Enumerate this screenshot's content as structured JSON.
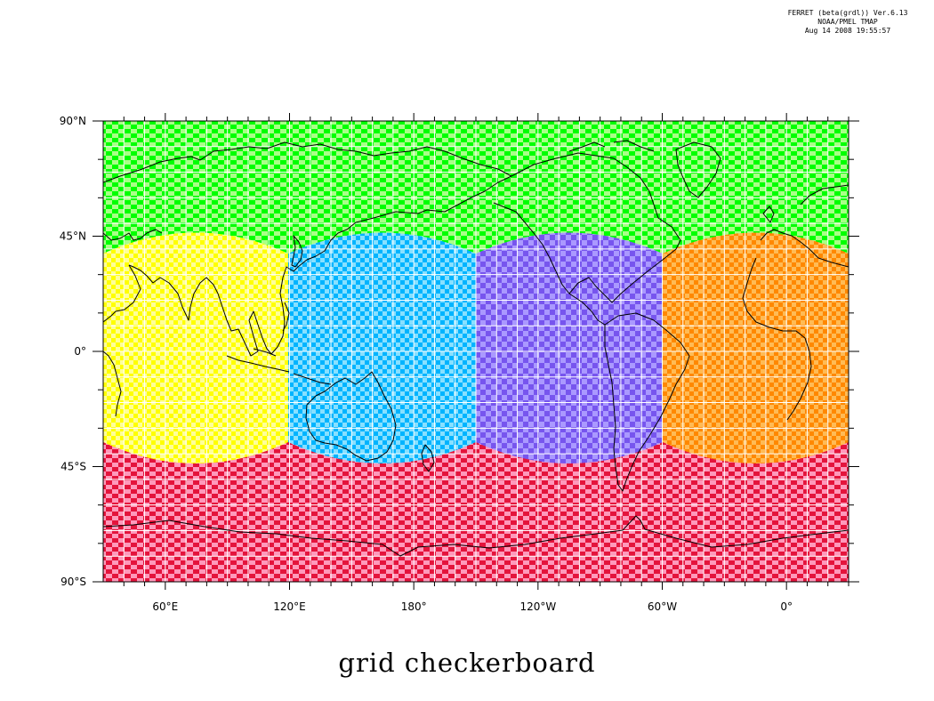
{
  "header": {
    "line1": "FERRET (beta(grdl)) Ver.6.13",
    "line2": "NOAA/PMEL TMAP",
    "line3": "Aug 14 2008 19:55:57"
  },
  "title": "grid checkerboard",
  "map": {
    "lat_labels": [
      "90°N",
      "45°N",
      "0°",
      "45°S",
      "90°S"
    ],
    "lon_labels": [
      "60°E",
      "120°E",
      "180°",
      "120°W",
      "60°W",
      "0°"
    ],
    "colors": {
      "north": [
        "#00ff00",
        "#aaff88"
      ],
      "south": [
        "#e4143c",
        "#ff99bb"
      ],
      "face1": [
        "#ffff00",
        "#ffff99"
      ],
      "face2": [
        "#00b4ff",
        "#88e0ff"
      ],
      "face3": [
        "#7755ee",
        "#aa99ff"
      ],
      "face4": [
        "#ff8800",
        "#ffbb55"
      ],
      "coast": "#000000",
      "grid": "#ffffff"
    }
  }
}
